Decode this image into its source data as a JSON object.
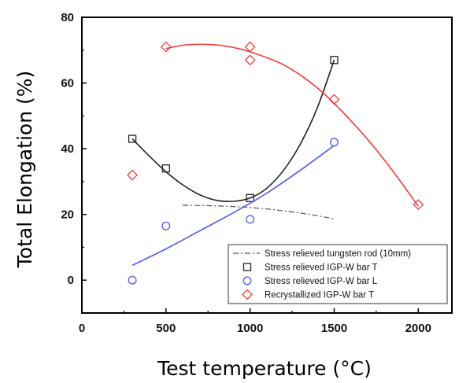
{
  "chart_data": {
    "type": "scatter",
    "xlabel": "Test temperature (°C)",
    "ylabel": "Total Elongation (%)",
    "xlim": [
      0,
      2200
    ],
    "ylim": [
      -10,
      80
    ],
    "xticks": [
      0,
      500,
      1000,
      1500,
      2000
    ],
    "yticks": [
      0,
      20,
      40,
      60,
      80
    ],
    "legend_position": "bottom-right",
    "grid": false,
    "series": [
      {
        "name": "Stress relieved tungsten rod (10mm)",
        "kind": "line",
        "color": "#555555",
        "x": [
          600,
          800,
          1000,
          1200,
          1400,
          1500
        ],
        "y": [
          22.8,
          22.6,
          22.1,
          21.1,
          19.6,
          18.6
        ]
      },
      {
        "name": "Stress relieved IGP-W bar T",
        "kind": "scatter",
        "marker": "square",
        "color": "#222222",
        "x": [
          300,
          500,
          1000,
          1500
        ],
        "y": [
          43,
          34,
          25,
          67
        ],
        "fit": {
          "x": [
            300,
            400,
            500,
            600,
            700,
            800,
            900,
            1000,
            1100,
            1200,
            1300,
            1400,
            1500
          ],
          "y": [
            43,
            37.8,
            33,
            29,
            26,
            24.3,
            24,
            25,
            28,
            33.5,
            41.5,
            52.5,
            67
          ]
        }
      },
      {
        "name": "Stress relieved IGP-W bar L",
        "kind": "scatter",
        "marker": "circle",
        "color": "#4d5bf0",
        "x": [
          300,
          500,
          1000,
          1500
        ],
        "y": [
          0,
          16.5,
          18.5,
          42
        ],
        "fit": {
          "x": [
            300,
            500,
            700,
            900,
            1100,
            1300,
            1500
          ],
          "y": [
            4.5,
            9.5,
            15,
            20.5,
            26.5,
            33.5,
            41
          ]
        }
      },
      {
        "name": "Recrystallized IGP-W bar T",
        "kind": "scatter",
        "marker": "diamond",
        "color": "#f23b3b",
        "x": [
          300,
          500,
          1000,
          1000,
          1500,
          2000
        ],
        "y": [
          32,
          71,
          71,
          67,
          55,
          23
        ],
        "fit": {
          "x": [
            500,
            600,
            700,
            800,
            900,
            1000,
            1200,
            1400,
            1600,
            1800,
            2000
          ],
          "y": [
            70.5,
            71.5,
            71.8,
            71.6,
            70.8,
            69.5,
            65.5,
            58.5,
            48.5,
            36.5,
            22.5
          ]
        }
      }
    ]
  }
}
